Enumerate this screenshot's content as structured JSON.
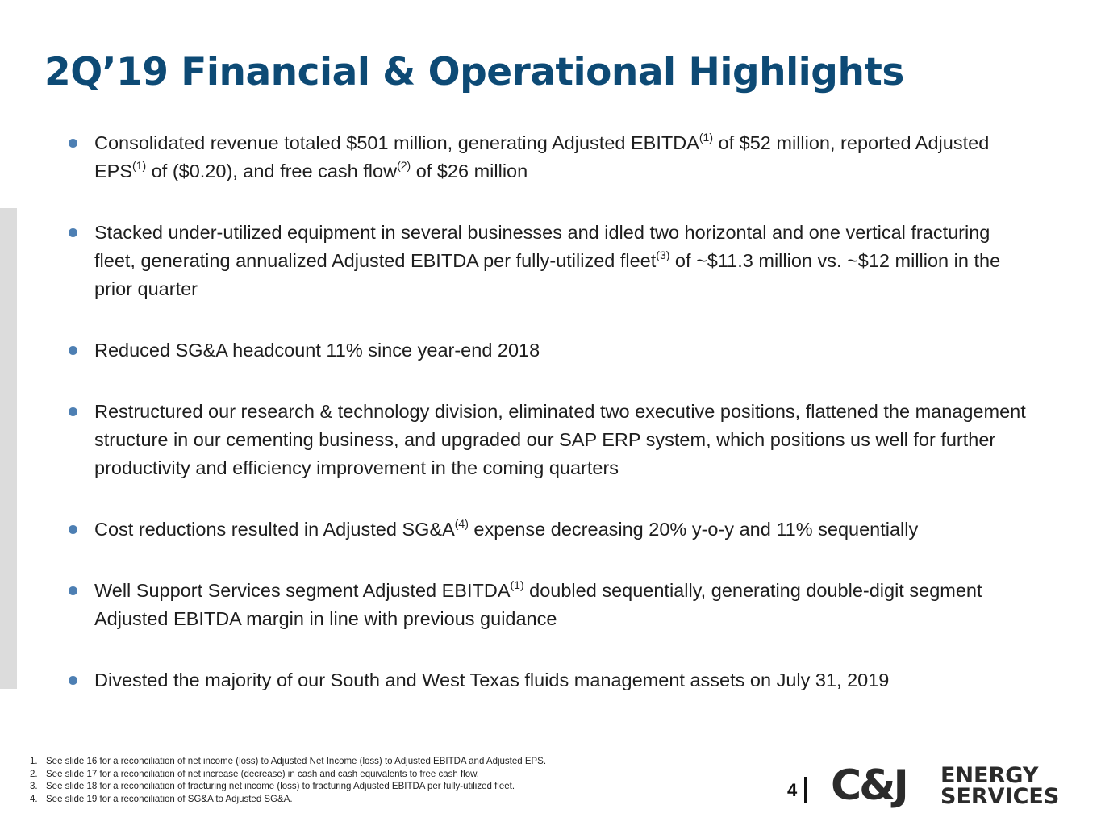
{
  "slide": {
    "title": "2Q’19 Financial & Operational Highlights",
    "page_number": "4"
  },
  "bullets": [
    {
      "segments": [
        {
          "text": "Consolidated revenue totaled $501 million, generating Adjusted EBITDA"
        },
        {
          "text": "(1)",
          "sup": true
        },
        {
          "text": " of $52 million, reported Adjusted EPS"
        },
        {
          "text": "(1)",
          "sup": true
        },
        {
          "text": " of ($0.20), and free cash flow"
        },
        {
          "text": "(2)",
          "sup": true
        },
        {
          "text": " of $26 million"
        }
      ]
    },
    {
      "segments": [
        {
          "text": "Stacked under-utilized equipment in several businesses and idled two horizontal and one vertical fracturing fleet, generating annualized Adjusted EBITDA per fully-utilized fleet"
        },
        {
          "text": "(3)",
          "sup": true
        },
        {
          "text": " of ~$11.3 million vs. ~$12 million in the prior quarter"
        }
      ]
    },
    {
      "segments": [
        {
          "text": "Reduced SG&A headcount 11% since year-end 2018"
        }
      ]
    },
    {
      "segments": [
        {
          "text": "Restructured our research & technology division, eliminated two executive positions, flattened the management structure in our cementing business, and upgraded our SAP ERP system, which positions us well for further productivity and efficiency improvement in the coming quarters"
        }
      ]
    },
    {
      "segments": [
        {
          "text": "Cost reductions resulted in Adjusted SG&A"
        },
        {
          "text": "(4)",
          "sup": true
        },
        {
          "text": " expense decreasing 20% y-o-y and 11% sequentially"
        }
      ]
    },
    {
      "segments": [
        {
          "text": "Well Support Services segment Adjusted EBITDA"
        },
        {
          "text": "(1)",
          "sup": true
        },
        {
          "text": " doubled sequentially, generating double-digit segment Adjusted EBITDA margin in line with previous guidance"
        }
      ]
    },
    {
      "segments": [
        {
          "text": "Divested the majority of our South and West Texas fluids management assets on July 31, 2019"
        }
      ]
    }
  ],
  "footnotes": [
    {
      "num": "1.",
      "text": "See slide 16 for a reconciliation of net income (loss) to Adjusted Net Income (loss) to Adjusted EBITDA and Adjusted EPS."
    },
    {
      "num": "2.",
      "text": "See slide 17 for a reconciliation of net increase (decrease) in cash and cash equivalents to free cash flow."
    },
    {
      "num": "3.",
      "text": "See slide 18 for a reconciliation of fracturing net income (loss) to fracturing Adjusted EBITDA per fully-utilized fleet."
    },
    {
      "num": "4.",
      "text": "See slide 19 for a reconciliation of SG&A to Adjusted SG&A."
    }
  ],
  "logo": {
    "mark": "C&J",
    "line1": "ENERGY",
    "line2": "SERVICES"
  },
  "colors": {
    "title": "#0d4a75",
    "bullet_dot": "#4d7fb3",
    "side_bar": "#dcdcdc",
    "logo": "#2b2b2b"
  }
}
